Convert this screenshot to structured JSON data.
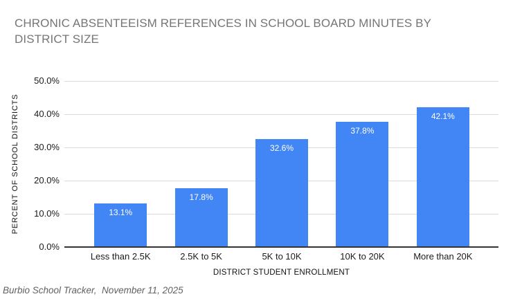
{
  "title": {
    "line1": "CHRONIC ABSENTEEISM REFERENCES IN SCHOOL BOARD MINUTES BY",
    "line2": "DISTRICT SIZE"
  },
  "footer": "Burbio School Tracker,  November 11, 2025",
  "chart_data": {
    "type": "bar",
    "title": "CHRONIC ABSENTEEISM REFERENCES IN SCHOOL BOARD MINUTES BY DISTRICT SIZE",
    "categories": [
      "Less than 2.5K",
      "2.5K to 5K",
      "5K to 10K",
      "10K to 20K",
      "More than 20K"
    ],
    "values": [
      13.1,
      17.8,
      32.6,
      37.8,
      42.1
    ],
    "value_labels": [
      "13.1%",
      "17.8%",
      "32.6%",
      "37.8%",
      "42.1%"
    ],
    "xlabel": "DISTRICT STUDENT ENROLLMENT",
    "ylabel": "PERCENT OF SCHOOL DISTRICTS",
    "ylim": [
      0,
      50
    ],
    "yticks": [
      "0.0%",
      "10.0%",
      "20.0%",
      "30.0%",
      "40.0%",
      "50.0%"
    ],
    "grid": true,
    "legend": false,
    "colors": {
      "bar": "#4285F4",
      "grid": "#d9d9d9",
      "axis": "#333333",
      "title_text": "#757575",
      "bar_label_text": "#ffffff"
    }
  }
}
